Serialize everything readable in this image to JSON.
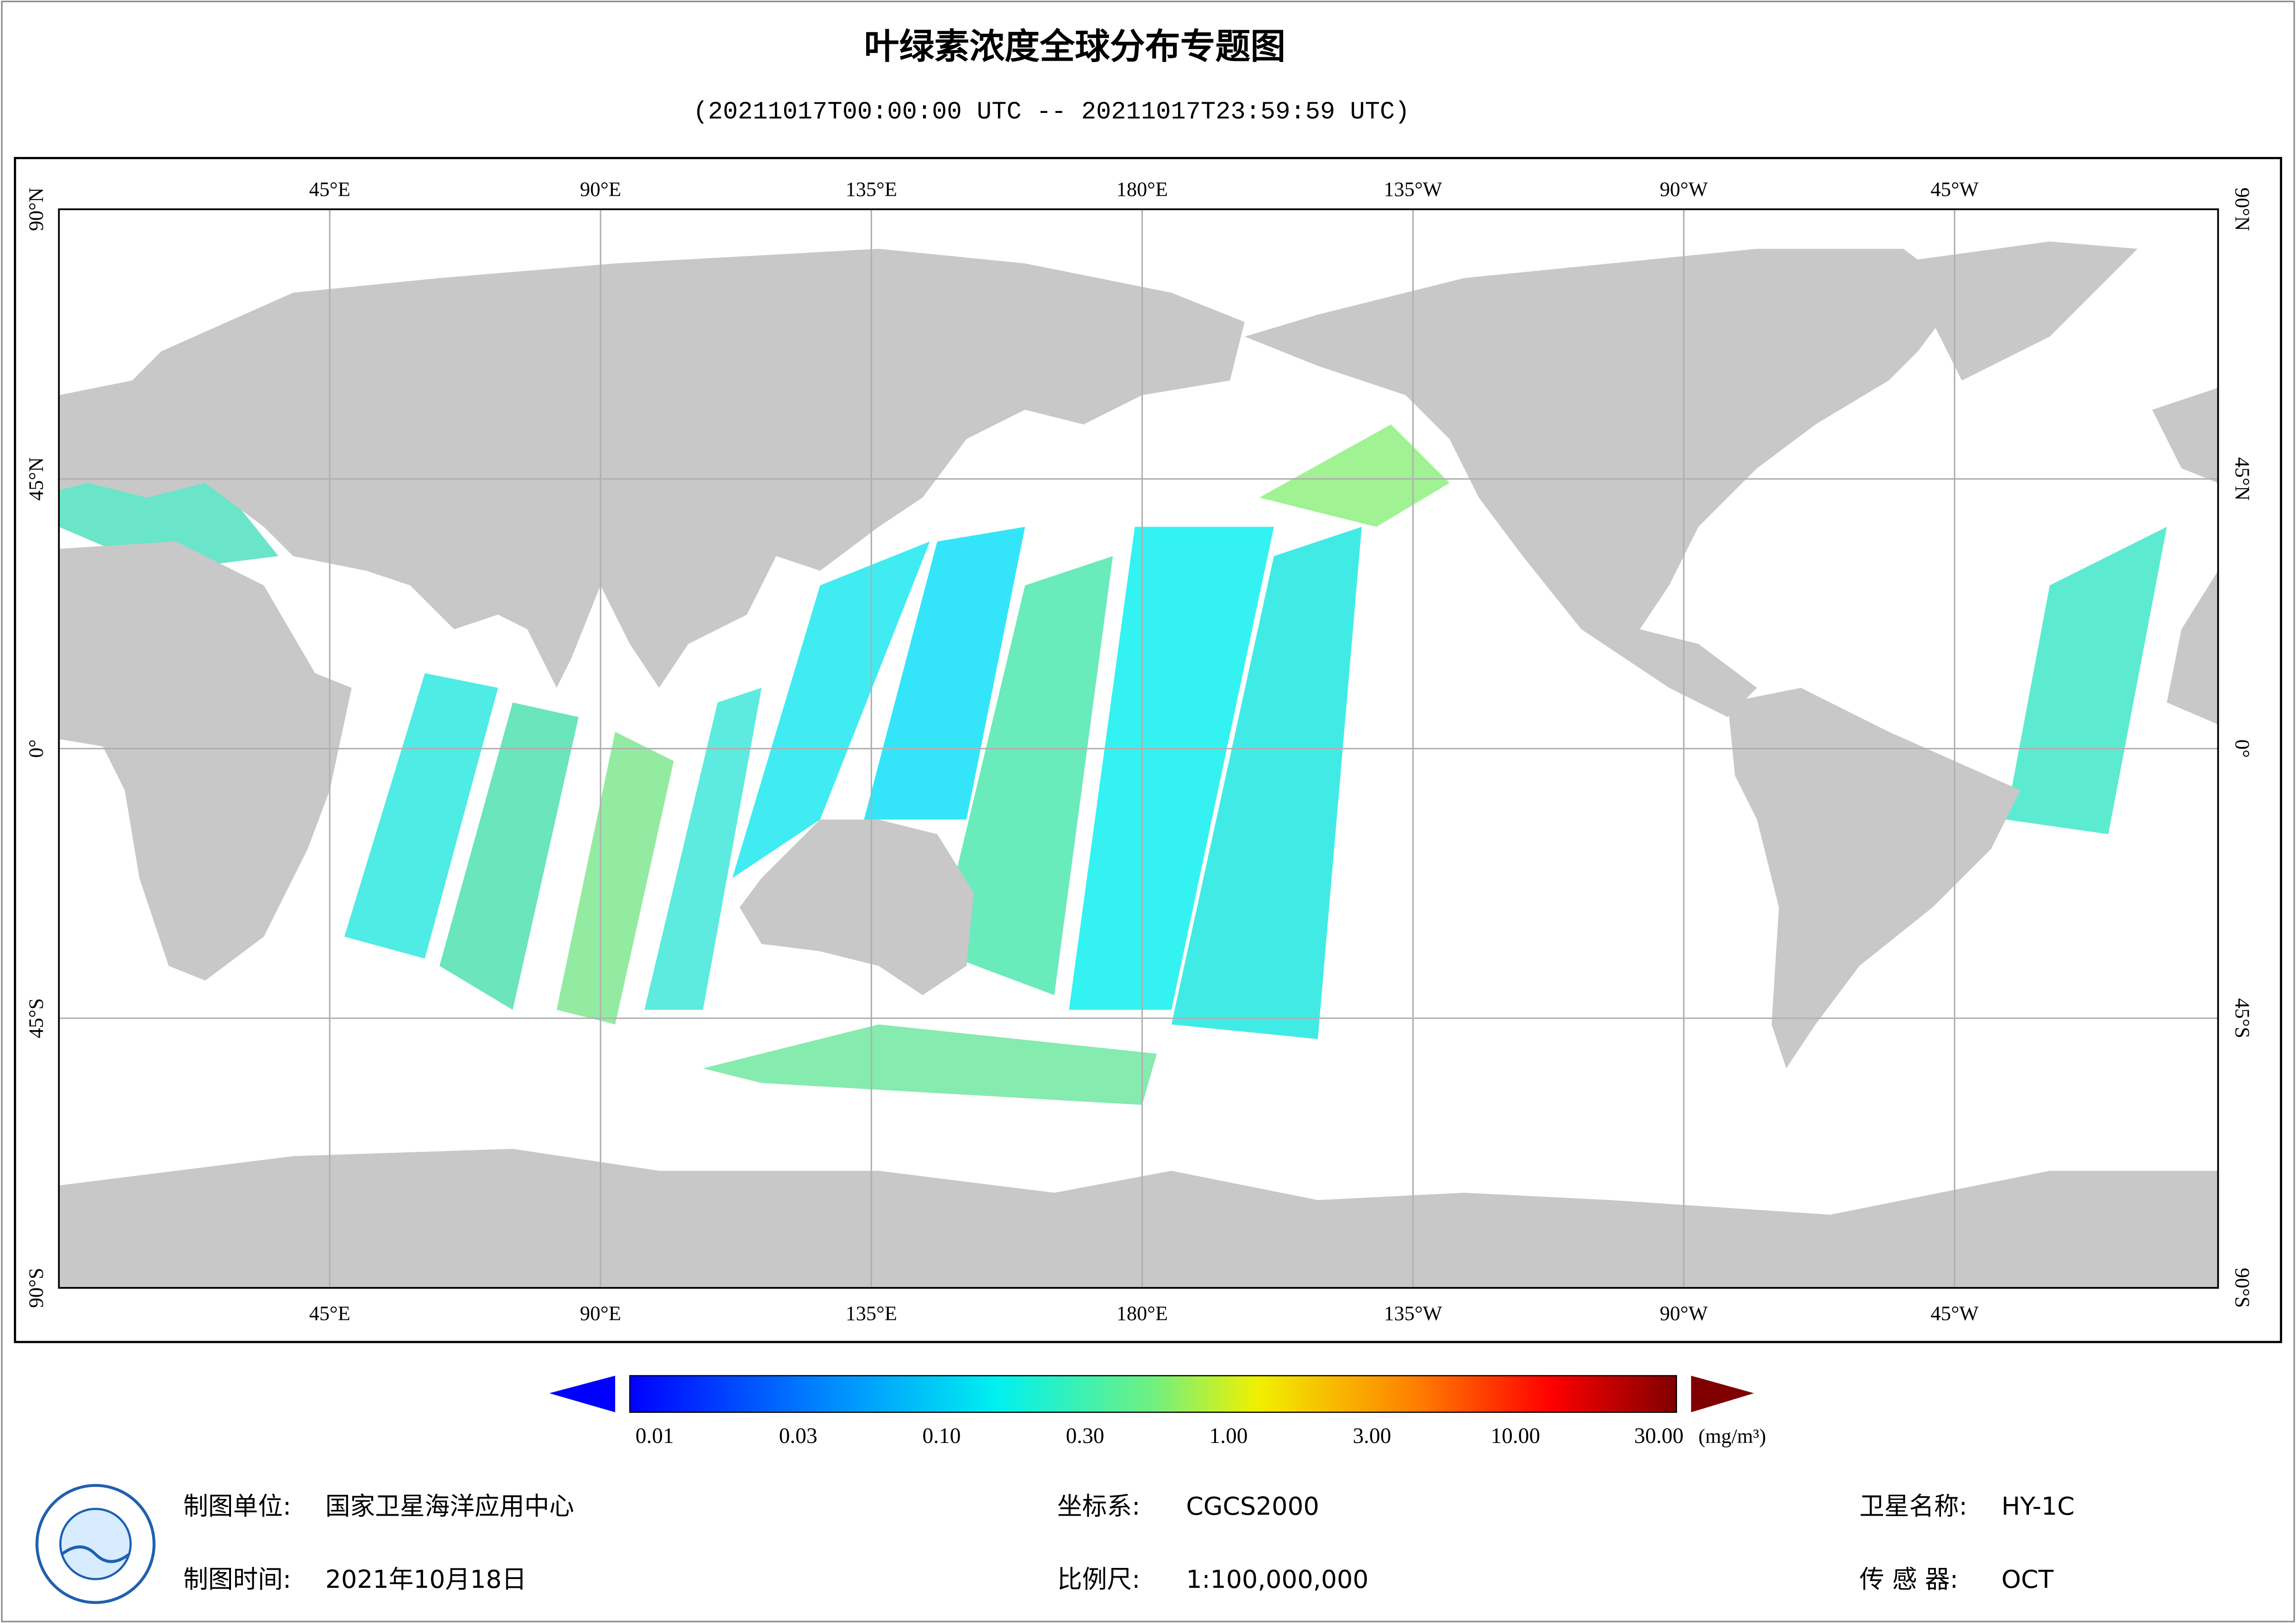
{
  "header": {
    "title": "叶绿素浓度全球分布专题图",
    "subtitle": "(20211017T00:00:00 UTC -- 20211017T23:59:59 UTC)"
  },
  "map": {
    "lon_labels": [
      "45°E",
      "90°E",
      "135°E",
      "180°E",
      "135°W",
      "90°W",
      "45°W"
    ],
    "lat_labels": [
      "90°N",
      "45°N",
      "0°",
      "45°S",
      "90°S"
    ]
  },
  "colorbar": {
    "labels": [
      "0.01",
      "0.03",
      "0.10",
      "0.30",
      "1.00",
      "3.00",
      "10.00",
      "30.00"
    ],
    "unit": "(mg/m³)"
  },
  "footer": {
    "items": [
      {
        "label": "制图单位:",
        "value": "国家卫星海洋应用中心"
      },
      {
        "label": "制图时间:",
        "value": "2021年10月18日"
      },
      {
        "label": "坐标系:",
        "value": "CGCS2000"
      },
      {
        "label": "比例尺:",
        "value": "1:100,000,000"
      },
      {
        "label": "卫星名称:",
        "value": "HY-1C"
      },
      {
        "label": "传 感 器:",
        "value": "OCT"
      }
    ]
  }
}
